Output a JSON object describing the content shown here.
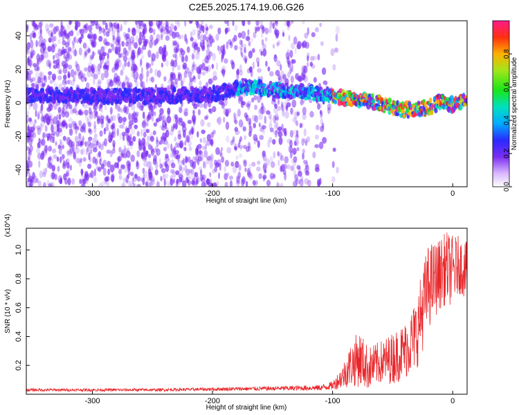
{
  "title": "C2E5.2025.174.19.06.G26",
  "colors": {
    "spectrogram_dot": "#7b2cf2",
    "snr_line": "#e8262a",
    "frame": "#000000"
  },
  "chart_data": [
    {
      "type": "heatmap",
      "xlabel": "Height of straight line (km)",
      "ylabel": "Frequency (Hz)",
      "xlim": [
        -355,
        12
      ],
      "ylim": [
        -50,
        49
      ],
      "xticks": [
        -300,
        -200,
        -100,
        0
      ],
      "xtick_labels": [
        "-300",
        "-200",
        "-100",
        "0"
      ],
      "yticks": [
        -40,
        -20,
        0,
        20,
        40
      ],
      "ytick_labels": [
        "-40",
        "-20",
        "0",
        "20",
        "40"
      ],
      "colorbar": {
        "label": "Normalized spectral amplitude",
        "range": [
          0.0,
          1.0
        ],
        "ticks": [
          0.0,
          0.2,
          0.4,
          0.6,
          0.8
        ],
        "tick_labels": [
          "0.0",
          "0.2",
          "0.4",
          "0.6",
          "0.8"
        ]
      },
      "signal_track": [
        {
          "x": -355,
          "y": 5
        },
        {
          "x": -300,
          "y": 4
        },
        {
          "x": -250,
          "y": 4
        },
        {
          "x": -200,
          "y": 5
        },
        {
          "x": -175,
          "y": 10
        },
        {
          "x": -150,
          "y": 8
        },
        {
          "x": -120,
          "y": 6
        },
        {
          "x": -100,
          "y": 4
        },
        {
          "x": -80,
          "y": 2
        },
        {
          "x": -60,
          "y": 0
        },
        {
          "x": -45,
          "y": -4
        },
        {
          "x": -35,
          "y": -4
        },
        {
          "x": -20,
          "y": -3
        },
        {
          "x": -10,
          "y": 1
        },
        {
          "x": 0,
          "y": -1
        },
        {
          "x": 12,
          "y": 1
        }
      ],
      "noise_extent_x": [
        -355,
        -95
      ]
    },
    {
      "type": "line",
      "xlabel": "Height of straight line (km)",
      "ylabel": "SNR (10 * v/v)",
      "y_multiplier": "(x10^4)",
      "xlim": [
        -355,
        12
      ],
      "ylim": [
        0,
        1.15
      ],
      "xticks": [
        -300,
        -200,
        -100,
        0
      ],
      "xtick_labels": [
        "-300",
        "-200",
        "-100",
        "0"
      ],
      "yticks": [
        0.2,
        0.4,
        0.6,
        0.8,
        1.0
      ],
      "ytick_labels": [
        "0.2",
        "0.4",
        "0.6",
        "0.8",
        "1.0"
      ],
      "envelope": [
        {
          "x": -355,
          "y": 0.03,
          "amp": 0.01
        },
        {
          "x": -250,
          "y": 0.03,
          "amp": 0.01
        },
        {
          "x": -200,
          "y": 0.035,
          "amp": 0.012
        },
        {
          "x": -150,
          "y": 0.04,
          "amp": 0.015
        },
        {
          "x": -110,
          "y": 0.045,
          "amp": 0.02
        },
        {
          "x": -100,
          "y": 0.06,
          "amp": 0.03
        },
        {
          "x": -92,
          "y": 0.12,
          "amp": 0.08
        },
        {
          "x": -85,
          "y": 0.2,
          "amp": 0.15
        },
        {
          "x": -78,
          "y": 0.25,
          "amp": 0.2
        },
        {
          "x": -70,
          "y": 0.18,
          "amp": 0.15
        },
        {
          "x": -60,
          "y": 0.22,
          "amp": 0.15
        },
        {
          "x": -50,
          "y": 0.25,
          "amp": 0.18
        },
        {
          "x": -40,
          "y": 0.3,
          "amp": 0.2
        },
        {
          "x": -30,
          "y": 0.42,
          "amp": 0.25
        },
        {
          "x": -25,
          "y": 0.6,
          "amp": 0.3
        },
        {
          "x": -20,
          "y": 0.75,
          "amp": 0.3
        },
        {
          "x": -12,
          "y": 0.82,
          "amp": 0.25
        },
        {
          "x": -5,
          "y": 0.88,
          "amp": 0.25
        },
        {
          "x": 0,
          "y": 0.85,
          "amp": 0.25
        },
        {
          "x": 5,
          "y": 0.9,
          "amp": 0.2
        },
        {
          "x": 12,
          "y": 0.85,
          "amp": 0.2
        }
      ]
    }
  ]
}
